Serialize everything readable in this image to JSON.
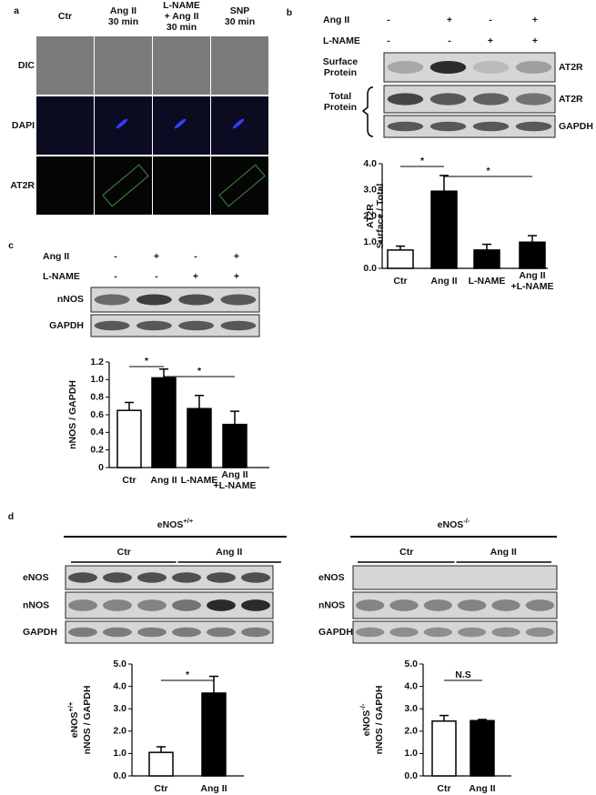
{
  "panel_a": {
    "label": "a",
    "columns": [
      "Ctr",
      "Ang II\n30 min",
      "L-NAME\n+ Ang II\n30 min",
      "SNP\n30 min"
    ],
    "rows": [
      "DIC",
      "DAPI",
      "AT2R"
    ]
  },
  "panel_b": {
    "label": "b",
    "conditions": [
      {
        "name": "Ang II",
        "states": [
          "-",
          "+",
          "-",
          "+"
        ]
      },
      {
        "name": "L-NAME",
        "states": [
          "-",
          "-",
          "+",
          "+"
        ]
      }
    ],
    "blot_groups": [
      "Surface\nProtein",
      "Total\nProtein"
    ],
    "bands": [
      "AT2R",
      "AT2R",
      "GAPDH"
    ]
  },
  "panel_c": {
    "label": "c",
    "conditions": [
      {
        "name": "Ang II",
        "states": [
          "-",
          "+",
          "-",
          "+"
        ]
      },
      {
        "name": "L-NAME",
        "states": [
          "-",
          "-",
          "+",
          "+"
        ]
      }
    ],
    "bands": [
      "nNOS",
      "GAPDH"
    ]
  },
  "panel_d": {
    "label": "d",
    "groups": [
      {
        "title": [
          "eNOS",
          "+/+"
        ],
        "columns": [
          "Ctr",
          "Ang II"
        ],
        "bands": [
          "eNOS",
          "nNOS",
          "GAPDH"
        ]
      },
      {
        "title": [
          "eNOS",
          "-/-"
        ],
        "columns": [
          "Ctr",
          "Ang II"
        ],
        "bands": [
          "eNOS",
          "nNOS",
          "GAPDH"
        ]
      }
    ]
  },
  "chart_data": [
    {
      "type": "bar",
      "categories": [
        "Ctr",
        "Ang II",
        "L-NAME",
        "Ang II\n+L-NAME"
      ],
      "values": [
        0.7,
        2.95,
        0.7,
        1.0
      ],
      "errors": [
        0.15,
        0.6,
        0.22,
        0.25
      ],
      "colors": [
        "#ffffff",
        "#000000",
        "#000000",
        "#000000"
      ],
      "ylabel": [
        "AT2R",
        "Surface / Total"
      ],
      "ylim": [
        0,
        4
      ],
      "yticks": [
        {
          "value": 0,
          "label": "0.0"
        },
        {
          "value": 1,
          "label": "1.0"
        },
        {
          "value": 2,
          "label": "2.0"
        },
        {
          "value": 3,
          "label": "3.0"
        },
        {
          "value": 4,
          "label": "4.0"
        }
      ],
      "annotations": [
        "*",
        "*"
      ]
    },
    {
      "type": "bar",
      "categories": [
        "Ctr",
        "Ang II",
        "L-NAME",
        "Ang II\n+L-NAME"
      ],
      "values": [
        0.65,
        1.02,
        0.67,
        0.49
      ],
      "errors": [
        0.09,
        0.1,
        0.15,
        0.15
      ],
      "colors": [
        "#ffffff",
        "#000000",
        "#000000",
        "#000000"
      ],
      "ylabel": [
        "nNOS / GAPDH"
      ],
      "ylim": [
        0,
        1.2
      ],
      "yticks": [
        0,
        0.2,
        0.4,
        0.6,
        0.8,
        {
          "value": 1,
          "label": "1.0"
        },
        1.2
      ],
      "annotations": [
        "*",
        "*"
      ]
    },
    {
      "type": "bar",
      "categories": [
        "Ctr",
        "Ang II"
      ],
      "values": [
        1.05,
        3.7
      ],
      "errors": [
        0.25,
        0.75
      ],
      "colors": [
        "#ffffff",
        "#000000"
      ],
      "ylabel": [
        [
          "eNOS",
          "+/+"
        ],
        "nNOS / GAPDH"
      ],
      "ylim": [
        0,
        5
      ],
      "yticks": [
        {
          "value": 0,
          "label": "0.0"
        },
        {
          "value": 1,
          "label": "1.0"
        },
        {
          "value": 2,
          "label": "2.0"
        },
        {
          "value": 3,
          "label": "3.0"
        },
        {
          "value": 4,
          "label": "4.0"
        },
        {
          "value": 5,
          "label": "5.0"
        }
      ],
      "annotations": [
        "*"
      ]
    },
    {
      "type": "bar",
      "categories": [
        "Ctr",
        "Ang II"
      ],
      "values": [
        2.45,
        2.47
      ],
      "errors": [
        0.25,
        0.05
      ],
      "colors": [
        "#ffffff",
        "#000000"
      ],
      "ylabel": [
        [
          "eNOS",
          "-/-"
        ],
        "nNOS / GAPDH"
      ],
      "ylim": [
        0,
        5
      ],
      "yticks": [
        {
          "value": 0,
          "label": "0.0"
        },
        {
          "value": 1,
          "label": "1.0"
        },
        {
          "value": 2,
          "label": "2.0"
        },
        {
          "value": 3,
          "label": "3.0"
        },
        {
          "value": 4,
          "label": "4.0"
        },
        {
          "value": 5,
          "label": "5.0"
        }
      ],
      "annotations": [
        "N.S"
      ]
    }
  ]
}
